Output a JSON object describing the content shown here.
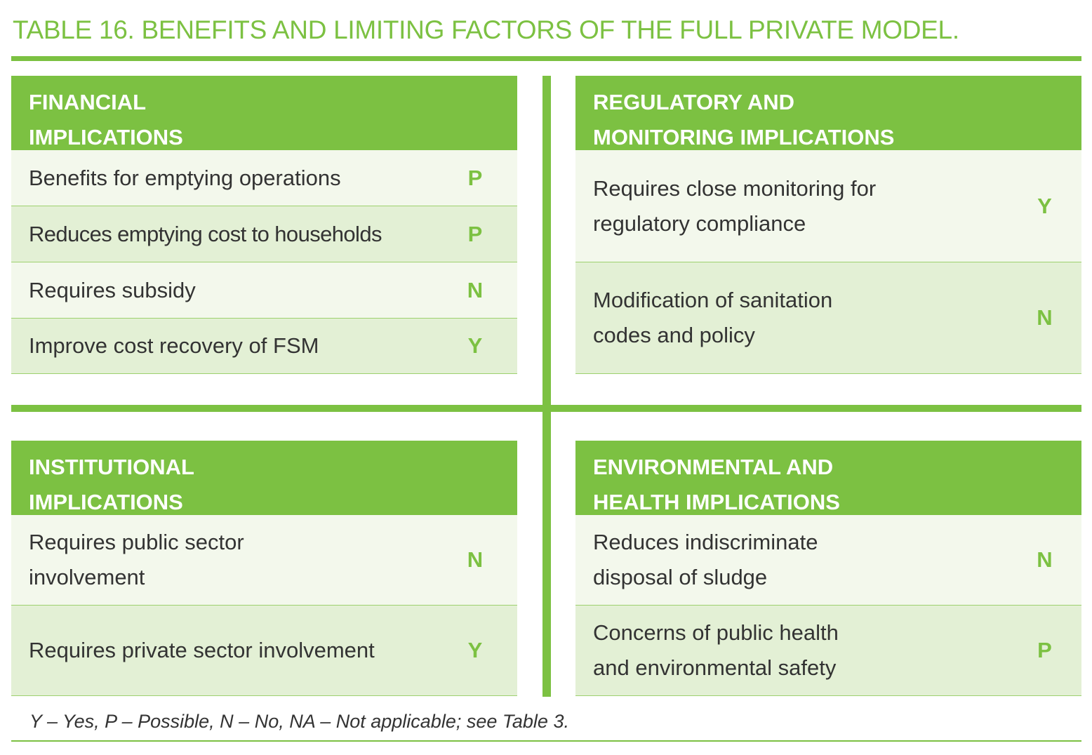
{
  "title": "TABLE 16. BENEFITS AND LIMITING FACTORS OF THE FULL PRIVATE MODEL.",
  "colors": {
    "accent": "#7cc142",
    "row_light": "#f3f8ec",
    "row_dark": "#e3f0d5",
    "text": "#333333"
  },
  "panels": {
    "financial": {
      "heading": [
        "FINANCIAL",
        "IMPLICATIONS"
      ],
      "rows": [
        {
          "label": [
            "Benefits for emptying operations"
          ],
          "value": "P"
        },
        {
          "label": [
            "Reduces emptying cost to households"
          ],
          "value": "P"
        },
        {
          "label": [
            "Requires subsidy"
          ],
          "value": "N"
        },
        {
          "label": [
            "Improve cost recovery of FSM"
          ],
          "value": "Y"
        }
      ]
    },
    "regulatory": {
      "heading": [
        "REGULATORY AND",
        "MONITORING IMPLICATIONS"
      ],
      "rows": [
        {
          "label": [
            "Requires close monitoring for",
            "regulatory compliance"
          ],
          "value": "Y"
        },
        {
          "label": [
            "Modification of sanitation",
            "codes and policy"
          ],
          "value": "N"
        }
      ]
    },
    "institutional": {
      "heading": [
        "INSTITUTIONAL",
        "IMPLICATIONS"
      ],
      "rows": [
        {
          "label": [
            "Requires public sector",
            "involvement"
          ],
          "value": "N"
        },
        {
          "label": [
            "Requires private sector involvement"
          ],
          "value": "Y"
        }
      ]
    },
    "environmental": {
      "heading": [
        "ENVIRONMENTAL AND",
        "HEALTH IMPLICATIONS"
      ],
      "rows": [
        {
          "label": [
            "Reduces indiscriminate",
            "disposal of sludge"
          ],
          "value": "N"
        },
        {
          "label": [
            "Concerns of public health",
            "and environmental safety"
          ],
          "value": "P"
        }
      ]
    }
  },
  "footnote": "Y – Yes, P – Possible, N – No, NA – Not applicable; see Table 3."
}
